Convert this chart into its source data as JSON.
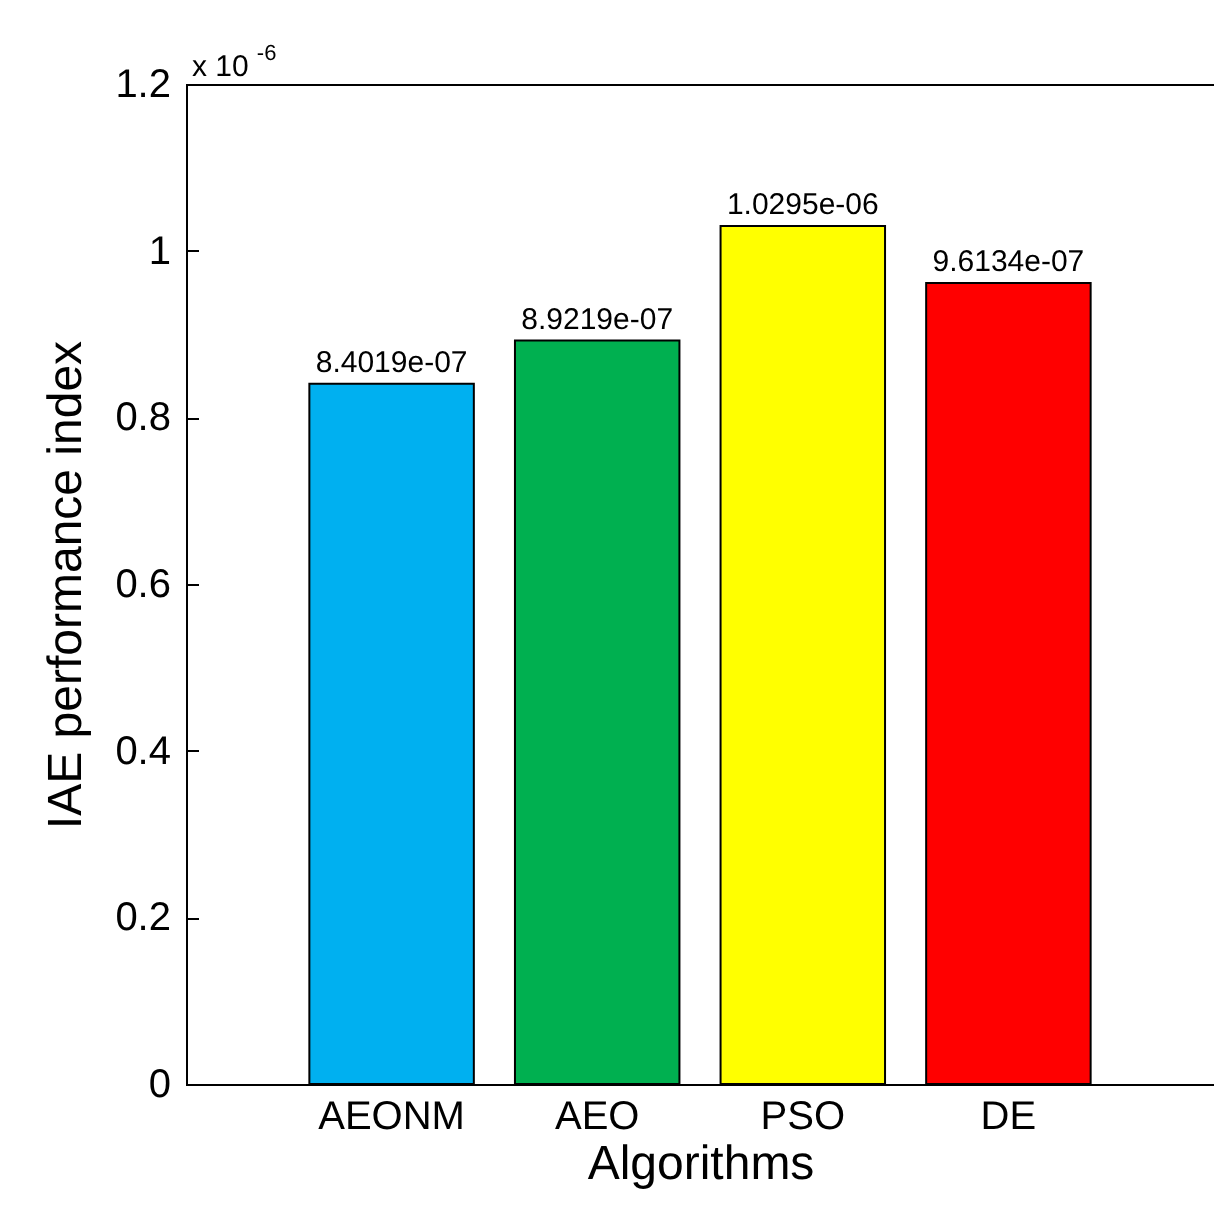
{
  "chart_data": {
    "type": "bar",
    "xlabel": "Algorithms",
    "ylabel": "IAE performance index",
    "categories": [
      "AEONM",
      "AEO",
      "PSO",
      "DE"
    ],
    "values": [
      0.84019,
      0.89219,
      1.0295,
      0.96134
    ],
    "colors": [
      "#00b0f0",
      "#00b050",
      "#ffff00",
      "#ff0000"
    ],
    "ylim": [
      0,
      1.2
    ],
    "yticks": [
      0,
      0.2,
      0.4,
      0.6,
      0.8,
      1,
      1.2
    ],
    "annotations": [
      "x 10$^{-6}$",
      {
        "text": "8.4019e-07",
        "x": "AEONM",
        "y": 0.84019
      },
      {
        "text": "8.9219e-07",
        "x": "AEO",
        "y": 0.89219
      },
      {
        "text": "1.0295e-06",
        "x": "PSO",
        "y": 1.0295
      },
      {
        "text": "9.6134e-07",
        "x": "DE",
        "y": 0.96134
      }
    ],
    "grid": false
  }
}
